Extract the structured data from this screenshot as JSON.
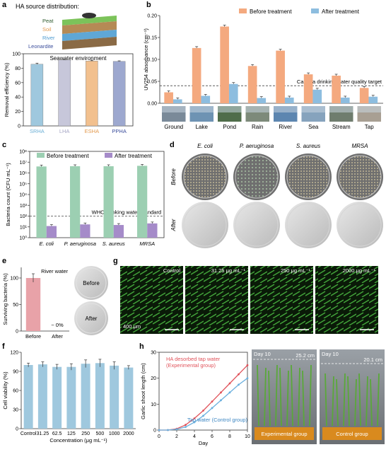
{
  "colors": {
    "before": "#F4A97F",
    "after": "#8DBDDF",
    "green": "#9CCFB2",
    "purple": "#A58BC9",
    "pink": "#E8A2A8",
    "bar_a": "#9FC8DE"
  },
  "panel_a": {
    "label": "a",
    "title": "HA source distribution:",
    "layers": [
      "Peat",
      "Soil",
      "River",
      "Leonardite"
    ],
    "chart_data": {
      "type": "bar",
      "title": "Seawater environment",
      "ylabel": "Removal efficiency (%)",
      "ylim": [
        0,
        100
      ],
      "yticks": [
        "0",
        "20",
        "40",
        "60",
        "80",
        "100"
      ],
      "categories": [
        "SRHA",
        "LHA",
        "ESHA",
        "PPHA"
      ],
      "values": [
        85.5,
        91.5,
        90.0,
        89.5
      ],
      "errors": [
        1.5,
        0.6,
        0.8,
        0.7
      ],
      "category_colors": [
        "#6DB0D6",
        "#A6A6C4",
        "#E39A4F",
        "#3B4D9C"
      ]
    }
  },
  "panel_b": {
    "label": "b",
    "chart_data": {
      "type": "bar",
      "ylabel": "UV254 absorbance (cm⁻¹)",
      "ylim": [
        0,
        0.2
      ],
      "yticks": [
        "0.00",
        "0.05",
        "0.10",
        "0.15",
        "0.20"
      ],
      "categories": [
        "Ground",
        "Lake",
        "Pond",
        "Rain",
        "River",
        "Sea",
        "Stream",
        "Tap"
      ],
      "series": [
        {
          "name": "Before treatment",
          "values": [
            0.025,
            0.126,
            0.175,
            0.085,
            0.12,
            0.066,
            0.063,
            0.035
          ]
        },
        {
          "name": "After treatment",
          "values": [
            0.009,
            0.017,
            0.044,
            0.012,
            0.013,
            0.031,
            0.013,
            0.015
          ]
        }
      ],
      "reference_line": {
        "value": 0.04,
        "label": "Canada drinking water quality target"
      }
    }
  },
  "panel_c": {
    "label": "c",
    "chart_data": {
      "type": "bar",
      "ylabel": "Bacteria count (CFU mL⁻¹)",
      "scale": "log",
      "ylim": [
        1,
        100000000
      ],
      "yticks": [
        "10⁰",
        "10¹",
        "10²",
        "10³",
        "10⁴",
        "10⁵",
        "10⁶",
        "10⁷",
        "10⁸"
      ],
      "categories": [
        "E. coli",
        "P. aeruginosa",
        "S. aureus",
        "MRSA"
      ],
      "series": [
        {
          "name": "Before treatment",
          "values": [
            4000000,
            4200000,
            4200000,
            4600000
          ]
        },
        {
          "name": "After treatment",
          "values": [
            12,
            17,
            15,
            21
          ]
        }
      ],
      "reference_line": {
        "value": 100,
        "label": "WHO drinking water standard"
      }
    }
  },
  "panel_d": {
    "label": "d",
    "columns": [
      "E. coli",
      "P. aeruginosa",
      "S. aureus",
      "MRSA"
    ],
    "rows": [
      "Before",
      "After"
    ]
  },
  "panel_e": {
    "label": "e",
    "chart_data": {
      "type": "bar",
      "title": "River water",
      "ylabel": "Surviving bacteria (%)",
      "ylim": [
        0,
        120
      ],
      "yticks": [
        "0",
        "50",
        "100"
      ],
      "categories": [
        "Before",
        "After"
      ],
      "values": [
        100,
        0
      ],
      "errors": [
        8,
        0
      ],
      "annotation": "~ 0%"
    },
    "dish_labels": [
      "Before",
      "After"
    ]
  },
  "panel_g": {
    "label": "g",
    "labels": [
      "Control",
      "31.25 μg mL⁻¹",
      "250 μg mL⁻¹",
      "2000 μg mL⁻¹"
    ],
    "scale_bar": "400 μm"
  },
  "panel_f": {
    "label": "f",
    "chart_data": {
      "type": "bar",
      "ylabel": "Cell viability (%)",
      "xlabel": "Concentration (μg mL⁻¹)",
      "ylim": [
        0,
        120
      ],
      "yticks": [
        "0",
        "30",
        "60",
        "90",
        "120"
      ],
      "categories": [
        "Control",
        "31.25",
        "62.5",
        "125",
        "250",
        "500",
        "1000",
        "2000"
      ],
      "values": [
        100,
        101,
        97,
        97,
        102,
        103,
        99,
        96
      ],
      "errors": [
        3,
        4,
        4,
        5,
        6,
        6,
        6,
        3
      ]
    }
  },
  "panel_h": {
    "label": "h",
    "chart_data": {
      "type": "line",
      "xlabel": "Day",
      "ylabel": "Garlic shoot length (cm)",
      "xlim": [
        0,
        10
      ],
      "ylim": [
        0,
        30
      ],
      "xticks": [
        "0",
        "2",
        "4",
        "6",
        "8",
        "10"
      ],
      "yticks": [
        "0",
        "10",
        "20",
        "30"
      ],
      "series": [
        {
          "name": "HA desorbed tap water (Experimental group)",
          "x": [
            0,
            1,
            2,
            3,
            4,
            5,
            6,
            7,
            8,
            9,
            10
          ],
          "y": [
            0,
            0,
            0.5,
            2,
            4.5,
            7.5,
            11,
            14.5,
            18,
            21.5,
            25
          ]
        },
        {
          "name": "Tap water (Control group)",
          "x": [
            0,
            1,
            2,
            3,
            4,
            5,
            6,
            7,
            8,
            9,
            10
          ],
          "y": [
            0,
            0,
            0.3,
            1.2,
            3,
            5.5,
            8.5,
            11.5,
            14.5,
            17.5,
            20
          ]
        }
      ]
    },
    "photo": {
      "day_left": "Day 10",
      "len_left": "25.2 cm",
      "day_right": "Day 10",
      "len_right": "20.1 cm",
      "group_left": "Experimental group",
      "group_right": "Control group"
    }
  }
}
